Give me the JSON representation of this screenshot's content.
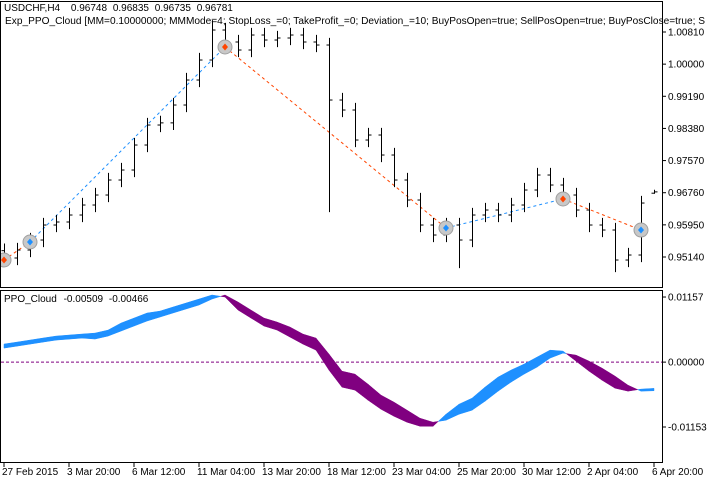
{
  "chart_data": [
    {
      "type": "ohlc",
      "title": "USDCHF,H4",
      "expert_label": "Exp_PPO_Cloud [MM=0.10000000; MMMode=4; StopLoss_=0; TakeProfit_=0; Deviation_=10; BuyPosOpen=true; SellPosOpen=true; BuyPosClose=true; S",
      "color": "#000000",
      "open": [
        0.953,
        0.95115,
        0.95316,
        0.95568,
        0.95946,
        0.96022,
        0.96198,
        0.9645,
        0.96702,
        0.9708,
        0.97332,
        0.97962,
        0.98466,
        0.9852,
        0.9897,
        0.996,
        1.00104,
        1.0086,
        1.00558,
        1.00356,
        1.00734,
        1.00608,
        1.00659,
        1.00734,
        1.00558,
        1.00482,
        0.99096,
        0.98844,
        0.98088,
        0.98214,
        0.9771,
        0.9708,
        0.96576,
        0.95946,
        0.95694,
        0.95946,
        0.95568,
        0.96198,
        0.96324,
        0.96198,
        0.9645,
        0.96828,
        0.97206,
        0.96954,
        0.96702,
        0.96324,
        0.95946,
        0.9582,
        0.95064,
        0.9519,
        0.96748
      ],
      "high": [
        0.9548,
        0.95496,
        0.95748,
        0.96126,
        0.96202,
        0.96378,
        0.9663,
        0.96882,
        0.9726,
        0.97512,
        0.98142,
        0.98646,
        0.987,
        0.9915,
        0.9978,
        1.00284,
        1.0111,
        1.0104,
        1.00738,
        1.00914,
        1.00914,
        1.00839,
        1.00914,
        1.00914,
        1.00738,
        1.00662,
        0.99276,
        0.99024,
        0.98394,
        0.98394,
        0.9789,
        0.9726,
        0.96756,
        0.96126,
        0.96126,
        0.96126,
        0.96378,
        0.96504,
        0.96504,
        0.9663,
        0.97008,
        0.97386,
        0.97386,
        0.97134,
        0.96882,
        0.96504,
        0.96126,
        0.96,
        0.9537,
        0.9668,
        0.96835
      ],
      "low": [
        0.94935,
        0.94935,
        0.95136,
        0.95388,
        0.95766,
        0.95842,
        0.96018,
        0.9627,
        0.96522,
        0.969,
        0.97152,
        0.97782,
        0.98286,
        0.9834,
        0.9879,
        0.9942,
        0.99924,
        1.00378,
        1.00176,
        1.00176,
        1.00428,
        1.00428,
        1.00479,
        1.00378,
        1.00302,
        0.9627,
        0.98664,
        0.97908,
        0.97908,
        0.9753,
        0.969,
        0.96396,
        0.95766,
        0.95514,
        0.95514,
        0.9486,
        0.95388,
        0.96018,
        0.96018,
        0.96018,
        0.9627,
        0.96648,
        0.96774,
        0.96522,
        0.96144,
        0.95766,
        0.9564,
        0.9476,
        0.94884,
        0.9501,
        0.96735
      ],
      "close": [
        0.95115,
        0.95316,
        0.95568,
        0.95946,
        0.96022,
        0.96198,
        0.9645,
        0.96702,
        0.9708,
        0.97332,
        0.97962,
        0.98466,
        0.9852,
        0.9897,
        0.996,
        1.00104,
        1.0086,
        1.00558,
        1.00356,
        1.00734,
        1.00608,
        1.00659,
        1.00734,
        1.00558,
        1.00482,
        0.99096,
        0.98844,
        0.98088,
        0.98214,
        0.9771,
        0.9708,
        0.96576,
        0.95946,
        0.95694,
        0.95946,
        0.95568,
        0.96198,
        0.96324,
        0.96198,
        0.9645,
        0.96828,
        0.97206,
        0.96954,
        0.96702,
        0.96324,
        0.95946,
        0.9582,
        0.95064,
        0.9519,
        0.965,
        0.96781
      ],
      "deals": [
        {
          "x": 0,
          "price": 0.95065,
          "color": "#FF4500"
        },
        {
          "x": 2,
          "price": 0.95518,
          "color": "#1E90FF"
        },
        {
          "x": 17,
          "price": 1.00432,
          "color": "#FF4500"
        },
        {
          "x": 34,
          "price": 0.95871,
          "color": "#1E90FF"
        },
        {
          "x": 43,
          "price": 0.96602,
          "color": "#FF4500"
        },
        {
          "x": 49,
          "price": 0.9582,
          "color": "#1E90FF"
        }
      ],
      "ylim": [
        0.94384,
        1.01566
      ],
      "yticks": [
        {
          "value": 1.0081,
          "label": "1.00810"
        },
        {
          "value": 1.0,
          "label": "1.00000"
        },
        {
          "value": 0.9919,
          "label": "0.99190"
        },
        {
          "value": 0.9838,
          "label": "0.98380"
        },
        {
          "value": 0.9757,
          "label": "0.97570"
        },
        {
          "value": 0.9676,
          "label": "0.96760"
        },
        {
          "value": 0.9595,
          "label": "0.95950"
        },
        {
          "value": 0.9514,
          "label": "0.95140"
        }
      ]
    },
    {
      "type": "cloud",
      "title": "PPO_Cloud",
      "categories": [
        "27 Feb 2015",
        null,
        null,
        null,
        null,
        "3 Mar 20:00",
        null,
        null,
        null,
        null,
        "6 Mar 12:00",
        null,
        null,
        null,
        null,
        "11 Mar 04:00",
        null,
        null,
        null,
        null,
        "13 Mar 20:00",
        null,
        null,
        null,
        null,
        "18 Mar 12:00",
        null,
        null,
        null,
        null,
        "23 Mar 04:00",
        null,
        null,
        null,
        null,
        "25 Mar 20:00",
        null,
        null,
        null,
        null,
        "30 Mar 12:00",
        null,
        null,
        null,
        null,
        "2 Apr 04:00",
        null,
        null,
        null,
        null,
        "6 Apr 20:00"
      ],
      "series": [
        {
          "color": "#1E90FF",
          "values": [
            0.00249,
            0.00284,
            0.0032,
            0.00356,
            0.00391,
            0.00409,
            0.00427,
            0.0041,
            0.00463,
            0.00552,
            0.00641,
            0.0073,
            0.00801,
            0.00873,
            0.00944,
            0.01015,
            0.01121,
            0.01193,
            0.01068,
            0.00925,
            0.00783,
            0.00712,
            0.00623,
            0.00498,
            0.00427,
            0.00142,
            -0.00161,
            -0.00214,
            -0.00392,
            -0.00587,
            -0.00712,
            -0.00854,
            -0.00997,
            -0.01068,
            -0.01032,
            -0.00926,
            -0.00855,
            -0.00695,
            -0.00517,
            -0.00356,
            -0.00214,
            -0.00089,
            0.00071,
            0.0016,
            0.00124,
            0.00018,
            -0.00107,
            -0.00249,
            -0.0041,
            -0.00516,
            -0.00509
          ]
        },
        {
          "color": "#800080",
          "values": [
            0.00321,
            0.00356,
            0.00392,
            0.00428,
            0.00463,
            0.00481,
            0.00499,
            0.00516,
            0.00569,
            0.00694,
            0.00783,
            0.00872,
            0.00907,
            0.00979,
            0.0105,
            0.01121,
            0.01193,
            0.01157,
            0.00926,
            0.00783,
            0.00641,
            0.0057,
            0.00445,
            0.0032,
            0.00213,
            -0.00142,
            -0.00445,
            -0.00498,
            -0.00676,
            -0.00837,
            -0.00962,
            -0.01068,
            -0.01139,
            -0.0114,
            -0.00926,
            -0.00748,
            -0.00641,
            -0.00445,
            -0.00267,
            -0.00142,
            -0.00036,
            0.00089,
            0.00213,
            0.00196,
            0.00018,
            -0.0016,
            -0.00321,
            -0.00463,
            -0.00516,
            -0.0048,
            -0.00466
          ]
        }
      ],
      "levels": [
        0
      ],
      "level_color": "#800080",
      "ylim": [
        -0.01775,
        0.01264
      ],
      "yticks": [
        0.01157,
        {
          "value": 0,
          "label": "0.00000"
        },
        -0.01153
      ]
    }
  ]
}
